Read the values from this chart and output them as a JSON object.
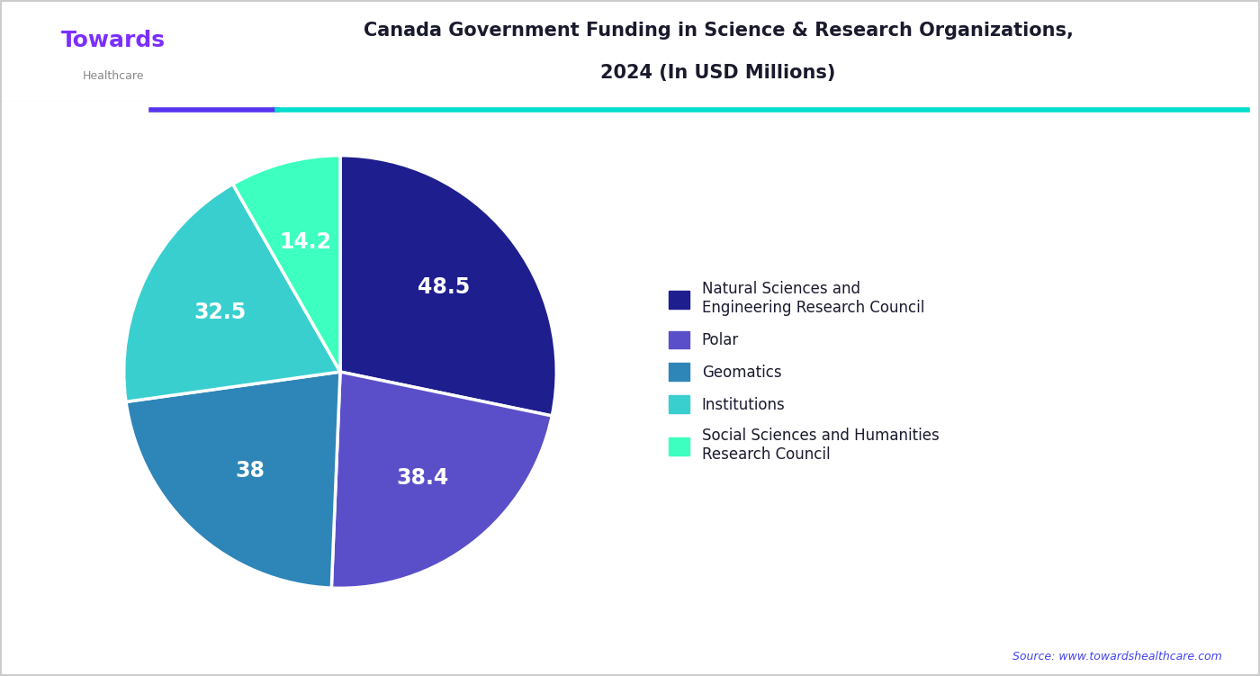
{
  "title_line1": "Canada Government Funding in Science & Research Organizations,",
  "title_line2": "2024 (In USD Millions)",
  "values": [
    48.5,
    38.4,
    38.0,
    32.5,
    14.2
  ],
  "slice_labels": [
    "48.5",
    "38.4",
    "38",
    "32.5",
    "14.2"
  ],
  "legend_labels": [
    "Natural Sciences and\nEngineering Research Council",
    "Polar",
    "Geomatics",
    "Institutions",
    "Social Sciences and Humanities\nResearch Council"
  ],
  "colors": [
    "#1e1e8f",
    "#5b4fc9",
    "#2e85b8",
    "#3acfcf",
    "#3dffc0"
  ],
  "startangle": 90,
  "background_color": "#ffffff",
  "header_bg": "#ffffff",
  "text_color": "#1a1a2e",
  "title_color": "#1a1a2e",
  "source_text": "Source: www.towardshealthcare.com",
  "source_color": "#4444ee",
  "logo_text": "Towards",
  "logo_sub": "Healthcare",
  "logo_color": "#7b2fff",
  "line1_color": "#5533ee",
  "line2_color": "#00ddcc",
  "border_color": "#cccccc",
  "legend_text_color": "#1a1a2e"
}
